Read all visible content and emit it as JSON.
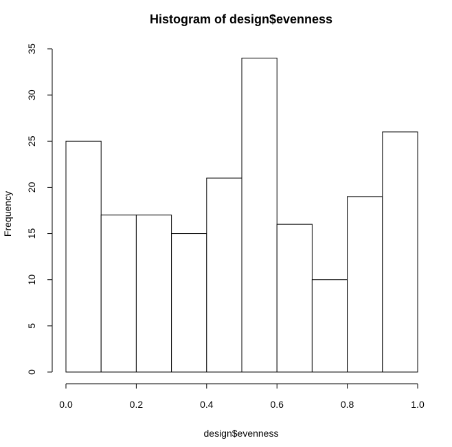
{
  "chart_data": {
    "type": "bar",
    "title": "Histogram of design$evenness",
    "xlabel": "design$evenness",
    "ylabel": "Frequency",
    "bins": [
      {
        "start": 0.0,
        "end": 0.1,
        "count": 25
      },
      {
        "start": 0.1,
        "end": 0.2,
        "count": 17
      },
      {
        "start": 0.2,
        "end": 0.3,
        "count": 17
      },
      {
        "start": 0.3,
        "end": 0.4,
        "count": 15
      },
      {
        "start": 0.4,
        "end": 0.5,
        "count": 21
      },
      {
        "start": 0.5,
        "end": 0.6,
        "count": 34
      },
      {
        "start": 0.6,
        "end": 0.7,
        "count": 16
      },
      {
        "start": 0.7,
        "end": 0.8,
        "count": 10
      },
      {
        "start": 0.8,
        "end": 0.9,
        "count": 19
      },
      {
        "start": 0.9,
        "end": 1.0,
        "count": 26
      }
    ],
    "xlim": [
      0.0,
      1.0
    ],
    "ylim": [
      0,
      35
    ],
    "x_ticks": [
      "0.0",
      "0.2",
      "0.4",
      "0.6",
      "0.8",
      "1.0"
    ],
    "y_ticks": [
      "0",
      "5",
      "10",
      "15",
      "20",
      "25",
      "30",
      "35"
    ],
    "grid": false,
    "legend": "none"
  }
}
